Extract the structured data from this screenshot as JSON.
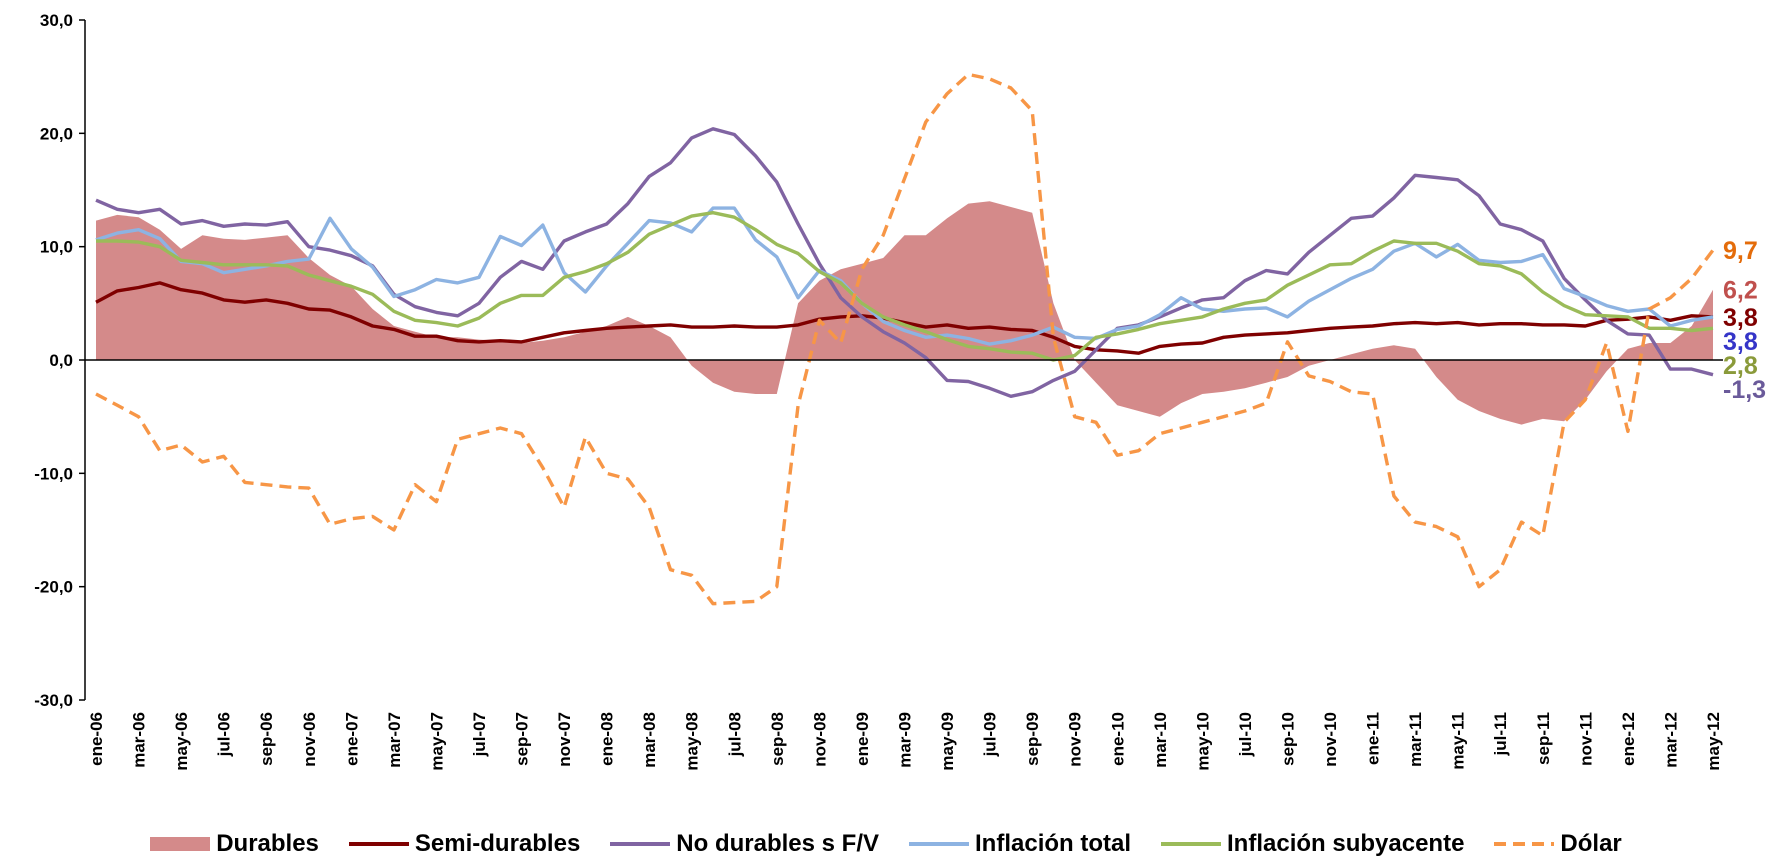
{
  "chart_data": {
    "type": "line",
    "grid": false,
    "categories": [
      "ene-06",
      null,
      "mar-06",
      null,
      "may-06",
      null,
      "jul-06",
      null,
      "sep-06",
      null,
      "nov-06",
      null,
      "ene-07",
      null,
      "mar-07",
      null,
      "may-07",
      null,
      "jul-07",
      null,
      "sep-07",
      null,
      "nov-07",
      null,
      "ene-08",
      null,
      "mar-08",
      null,
      "may-08",
      null,
      "jul-08",
      null,
      "sep-08",
      null,
      "nov-08",
      null,
      "ene-09",
      null,
      "mar-09",
      null,
      "may-09",
      null,
      "jul-09",
      null,
      "sep-09",
      null,
      "nov-09",
      null,
      "ene-10",
      null,
      "mar-10",
      null,
      "may-10",
      null,
      "jul-10",
      null,
      "sep-10",
      null,
      "nov-10",
      null,
      "ene-11",
      null,
      "mar-11",
      null,
      "may-11",
      null,
      "jul-11",
      null,
      "sep-11",
      null,
      "nov-11",
      null,
      "ene-12",
      null,
      "mar-12",
      null,
      "may-12"
    ],
    "ylim": [
      -30,
      30
    ],
    "yticks": [
      {
        "value": -30,
        "label": "-30,0"
      },
      {
        "value": -20,
        "label": "-20,0"
      },
      {
        "value": -10,
        "label": "-10,0"
      },
      {
        "value": 0,
        "label": "0,0"
      },
      {
        "value": 10,
        "label": "10,0"
      },
      {
        "value": 20,
        "label": "20,0"
      },
      {
        "value": 30,
        "label": "30,0"
      }
    ],
    "series": [
      {
        "name": "Durables",
        "type": "area",
        "color": "#d48a8a",
        "label_color": "#c0504d",
        "values": [
          12.3,
          12.8,
          12.6,
          11.5,
          9.8,
          11.0,
          10.7,
          10.6,
          10.8,
          11.0,
          9.0,
          7.5,
          6.5,
          4.5,
          3.0,
          2.5,
          2.0,
          2.0,
          1.8,
          1.7,
          1.5,
          1.7,
          2.0,
          2.5,
          3.0,
          3.8,
          3.0,
          2.0,
          -0.5,
          -2.0,
          -2.8,
          -3.0,
          -3.0,
          5.0,
          7.0,
          8.0,
          8.5,
          9.0,
          11.0,
          11.0,
          12.5,
          13.8,
          14.0,
          13.5,
          13.0,
          5.0,
          0.0,
          -2.0,
          -4.0,
          -4.5,
          -5.0,
          -3.8,
          -3.0,
          -2.8,
          -2.5,
          -2.0,
          -1.5,
          -0.5,
          0.0,
          0.5,
          1.0,
          1.3,
          1.0,
          -1.5,
          -3.5,
          -4.5,
          -5.2,
          -5.7,
          -5.2,
          -5.4,
          -3.5,
          -1.0,
          1.0,
          1.5,
          1.5,
          3.0,
          6.2
        ],
        "value_labels": [
          null,
          null,
          null,
          null,
          null,
          null,
          null,
          null,
          null,
          null,
          null,
          null,
          null,
          null,
          null,
          null,
          null,
          null,
          null,
          null,
          null,
          null,
          null,
          null,
          null,
          null,
          null,
          null,
          null,
          null,
          null,
          null,
          null,
          null,
          null,
          null,
          null,
          null,
          null,
          null,
          null,
          null,
          null,
          null,
          null,
          null,
          null,
          null,
          null,
          null,
          null,
          null,
          null,
          null,
          null,
          null,
          null,
          null,
          null,
          null,
          null,
          null,
          null,
          null,
          null,
          null,
          null,
          null,
          null,
          null,
          null,
          null,
          null,
          null,
          null,
          null,
          "6,2"
        ]
      },
      {
        "name": "Semi-durables",
        "type": "line",
        "color": "#7f0000",
        "label_color": "#7f0000",
        "values": [
          5.1,
          6.1,
          6.4,
          6.8,
          6.2,
          5.9,
          5.3,
          5.1,
          5.3,
          5.0,
          4.5,
          4.4,
          3.8,
          3.0,
          2.7,
          2.1,
          2.1,
          1.7,
          1.6,
          1.7,
          1.6,
          2.0,
          2.4,
          2.6,
          2.8,
          2.9,
          3.0,
          3.1,
          2.9,
          2.9,
          3.0,
          2.9,
          2.9,
          3.1,
          3.6,
          3.8,
          3.9,
          3.7,
          3.3,
          2.9,
          3.1,
          2.8,
          2.9,
          2.7,
          2.6,
          2.0,
          1.2,
          0.9,
          0.8,
          0.6,
          1.2,
          1.4,
          1.5,
          2.0,
          2.2,
          2.3,
          2.4,
          2.6,
          2.8,
          2.9,
          3.0,
          3.2,
          3.3,
          3.2,
          3.3,
          3.1,
          3.2,
          3.2,
          3.1,
          3.1,
          3.0,
          3.5,
          3.6,
          3.8,
          3.5,
          3.9,
          3.8
        ],
        "value_labels": [
          null,
          null,
          null,
          null,
          null,
          null,
          null,
          null,
          null,
          null,
          null,
          null,
          null,
          null,
          null,
          null,
          null,
          null,
          null,
          null,
          null,
          null,
          null,
          null,
          null,
          null,
          null,
          null,
          null,
          null,
          null,
          null,
          null,
          null,
          null,
          null,
          null,
          null,
          null,
          null,
          null,
          null,
          null,
          null,
          null,
          null,
          null,
          null,
          null,
          null,
          null,
          null,
          null,
          null,
          null,
          null,
          null,
          null,
          null,
          null,
          null,
          null,
          null,
          null,
          null,
          null,
          null,
          null,
          null,
          null,
          null,
          null,
          null,
          null,
          null,
          null,
          "3,8"
        ]
      },
      {
        "name": "No durables s F/V",
        "type": "line",
        "color": "#8064a2",
        "label_color": "#6a5a9a",
        "values": [
          14.1,
          13.3,
          13.0,
          13.3,
          12.0,
          12.3,
          11.8,
          12.0,
          11.9,
          12.2,
          10.0,
          9.7,
          9.2,
          8.3,
          5.8,
          4.7,
          4.2,
          3.9,
          5.0,
          7.3,
          8.7,
          8.0,
          10.5,
          11.3,
          12.0,
          13.8,
          16.2,
          17.4,
          19.6,
          20.4,
          19.9,
          18.0,
          15.7,
          12.0,
          8.5,
          5.5,
          3.8,
          2.5,
          1.5,
          0.2,
          -1.8,
          -1.9,
          -2.5,
          -3.2,
          -2.8,
          -1.8,
          -1.0,
          0.9,
          2.8,
          3.1,
          3.8,
          4.6,
          5.3,
          5.5,
          7.0,
          7.9,
          7.6,
          9.5,
          11.0,
          12.5,
          12.7,
          14.3,
          16.3,
          16.1,
          15.9,
          14.5,
          12.0,
          11.5,
          10.5,
          7.2,
          5.3,
          3.5,
          2.3,
          2.2,
          -0.8,
          -0.8,
          -1.3
        ],
        "value_labels": [
          null,
          null,
          null,
          null,
          null,
          null,
          null,
          null,
          null,
          null,
          null,
          null,
          null,
          null,
          null,
          null,
          null,
          null,
          null,
          null,
          null,
          null,
          null,
          null,
          null,
          null,
          null,
          null,
          null,
          null,
          null,
          null,
          null,
          null,
          null,
          null,
          null,
          null,
          null,
          null,
          null,
          null,
          null,
          null,
          null,
          null,
          null,
          null,
          null,
          null,
          null,
          null,
          null,
          null,
          null,
          null,
          null,
          null,
          null,
          null,
          null,
          null,
          null,
          null,
          null,
          null,
          null,
          null,
          null,
          null,
          null,
          null,
          null,
          null,
          null,
          null,
          "-1,3"
        ]
      },
      {
        "name": "Inflación total",
        "type": "line",
        "color": "#8db3e2",
        "label_color": "#3535c8",
        "values": [
          10.6,
          11.2,
          11.5,
          10.7,
          8.7,
          8.5,
          7.7,
          8.0,
          8.3,
          8.7,
          8.9,
          12.5,
          9.8,
          8.2,
          5.6,
          6.2,
          7.1,
          6.8,
          7.3,
          10.9,
          10.1,
          11.9,
          7.7,
          6.0,
          8.3,
          10.3,
          12.3,
          12.1,
          11.3,
          13.4,
          13.4,
          10.6,
          9.1,
          5.5,
          7.9,
          7.0,
          5.0,
          3.4,
          2.6,
          2.0,
          2.2,
          1.9,
          1.4,
          1.7,
          2.2,
          2.9,
          2.0,
          1.9,
          2.7,
          3.0,
          4.0,
          5.5,
          4.5,
          4.3,
          4.5,
          4.6,
          3.8,
          5.2,
          6.2,
          7.2,
          8.0,
          9.6,
          10.3,
          9.1,
          10.2,
          8.8,
          8.6,
          8.7,
          9.3,
          6.3,
          5.6,
          4.8,
          4.3,
          4.5,
          3.0,
          3.5,
          3.8
        ],
        "value_labels": [
          null,
          null,
          null,
          null,
          null,
          null,
          null,
          null,
          null,
          null,
          null,
          null,
          null,
          null,
          null,
          null,
          null,
          null,
          null,
          null,
          null,
          null,
          null,
          null,
          null,
          null,
          null,
          null,
          null,
          null,
          null,
          null,
          null,
          null,
          null,
          null,
          null,
          null,
          null,
          null,
          null,
          null,
          null,
          null,
          null,
          null,
          null,
          null,
          null,
          null,
          null,
          null,
          null,
          null,
          null,
          null,
          null,
          null,
          null,
          null,
          null,
          null,
          null,
          null,
          null,
          null,
          null,
          null,
          null,
          null,
          null,
          null,
          null,
          null,
          null,
          null,
          "3,8"
        ]
      },
      {
        "name": "Inflación subyacente",
        "type": "line",
        "color": "#9bbb59",
        "label_color": "#8a9a3a",
        "values": [
          10.5,
          10.5,
          10.4,
          10.0,
          8.8,
          8.6,
          8.4,
          8.4,
          8.4,
          8.3,
          7.5,
          7.0,
          6.5,
          5.8,
          4.3,
          3.5,
          3.3,
          3.0,
          3.7,
          5.0,
          5.7,
          5.7,
          7.3,
          7.8,
          8.5,
          9.5,
          11.1,
          11.9,
          12.7,
          13.0,
          12.6,
          11.5,
          10.2,
          9.4,
          7.8,
          6.8,
          5.0,
          3.8,
          3.1,
          2.5,
          1.8,
          1.2,
          1.0,
          0.7,
          0.6,
          0.0,
          0.4,
          2.0,
          2.3,
          2.7,
          3.2,
          3.5,
          3.8,
          4.5,
          5.0,
          5.3,
          6.6,
          7.5,
          8.4,
          8.5,
          9.6,
          10.5,
          10.3,
          10.3,
          9.6,
          8.5,
          8.3,
          7.6,
          6.0,
          4.8,
          4.0,
          3.9,
          3.8,
          2.8,
          2.8,
          2.6,
          2.8
        ],
        "value_labels": [
          null,
          null,
          null,
          null,
          null,
          null,
          null,
          null,
          null,
          null,
          null,
          null,
          null,
          null,
          null,
          null,
          null,
          null,
          null,
          null,
          null,
          null,
          null,
          null,
          null,
          null,
          null,
          null,
          null,
          null,
          null,
          null,
          null,
          null,
          null,
          null,
          null,
          null,
          null,
          null,
          null,
          null,
          null,
          null,
          null,
          null,
          null,
          null,
          null,
          null,
          null,
          null,
          null,
          null,
          null,
          null,
          null,
          null,
          null,
          null,
          null,
          null,
          null,
          null,
          null,
          null,
          null,
          null,
          null,
          null,
          null,
          null,
          null,
          null,
          null,
          null,
          "2,8"
        ]
      },
      {
        "name": "Dólar",
        "type": "line",
        "dashed": true,
        "color": "#f79646",
        "label_color": "#e46c0a",
        "values": [
          -3.0,
          -4.0,
          -5.0,
          -8.0,
          -7.5,
          -9.0,
          -8.5,
          -10.8,
          -11.0,
          -11.2,
          -11.3,
          -14.5,
          -14.0,
          -13.8,
          -15.0,
          -11.0,
          -12.5,
          -7.0,
          -6.5,
          -6.0,
          -6.5,
          -9.5,
          -13.0,
          -6.8,
          -10.0,
          -10.5,
          -13.0,
          -18.5,
          -19.0,
          -21.5,
          -21.4,
          -21.3,
          -20.0,
          -4.0,
          3.5,
          1.5,
          8.0,
          11.0,
          16.0,
          21.0,
          23.5,
          25.2,
          24.8,
          24.0,
          22.0,
          2.0,
          -5.0,
          -5.5,
          -8.4,
          -8.0,
          -6.5,
          -6.0,
          -5.5,
          -5.0,
          -4.5,
          -3.8,
          1.6,
          -1.4,
          -1.9,
          -2.8,
          -3.0,
          -12.0,
          -14.3,
          -14.7,
          -15.6,
          -20.0,
          -18.5,
          -14.3,
          -15.5,
          -5.5,
          -3.5,
          1.5,
          -6.3,
          4.5,
          5.5,
          7.2,
          9.7
        ],
        "value_labels": [
          null,
          null,
          null,
          null,
          null,
          null,
          null,
          null,
          null,
          null,
          null,
          null,
          null,
          null,
          null,
          null,
          null,
          null,
          null,
          null,
          null,
          null,
          null,
          null,
          null,
          null,
          null,
          null,
          null,
          null,
          null,
          null,
          null,
          null,
          null,
          null,
          null,
          null,
          null,
          null,
          null,
          null,
          null,
          null,
          null,
          null,
          null,
          null,
          null,
          null,
          null,
          null,
          null,
          null,
          null,
          null,
          null,
          null,
          null,
          null,
          null,
          null,
          null,
          null,
          null,
          null,
          null,
          null,
          null,
          null,
          null,
          null,
          null,
          null,
          null,
          null,
          "9,7"
        ]
      }
    ]
  }
}
